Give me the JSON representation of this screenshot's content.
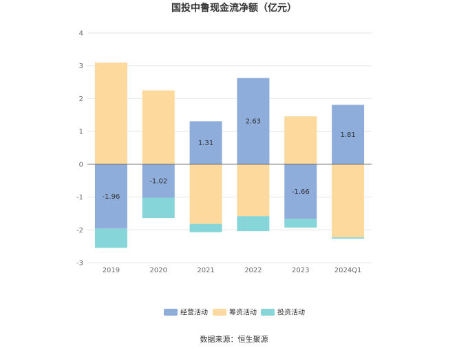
{
  "chart_data": {
    "type": "bar",
    "stacked": true,
    "title": "国投中鲁现金流净额（亿元）",
    "categories": [
      "2019",
      "2020",
      "2021",
      "2022",
      "2023",
      "2024Q1"
    ],
    "series": [
      {
        "name": "经营活动",
        "color": "#8eaddb",
        "values": [
          -1.96,
          -1.02,
          1.31,
          2.63,
          -1.66,
          1.81
        ]
      },
      {
        "name": "筹资活动",
        "color": "#fdd99d",
        "values": [
          3.1,
          2.25,
          -1.82,
          -1.58,
          1.46,
          -2.23
        ]
      },
      {
        "name": "投资活动",
        "color": "#86d5d8",
        "values": [
          -0.59,
          -0.62,
          -0.25,
          -0.46,
          -0.27,
          -0.04
        ]
      }
    ],
    "data_labels": [
      {
        "category": "2019",
        "text": "-1.96"
      },
      {
        "category": "2020",
        "text": "-1.02"
      },
      {
        "category": "2021",
        "text": "1.31"
      },
      {
        "category": "2022",
        "text": "2.63"
      },
      {
        "category": "2023",
        "text": "-1.66"
      },
      {
        "category": "2024Q1",
        "text": "1.81"
      }
    ],
    "y_ticks": [
      "4",
      "3",
      "2",
      "1",
      "0",
      "-1",
      "-2",
      "-3"
    ],
    "ylim": [
      -3,
      4
    ],
    "grid": true,
    "legend_position": "bottom-center",
    "source": "数据来源：恒生聚源"
  }
}
